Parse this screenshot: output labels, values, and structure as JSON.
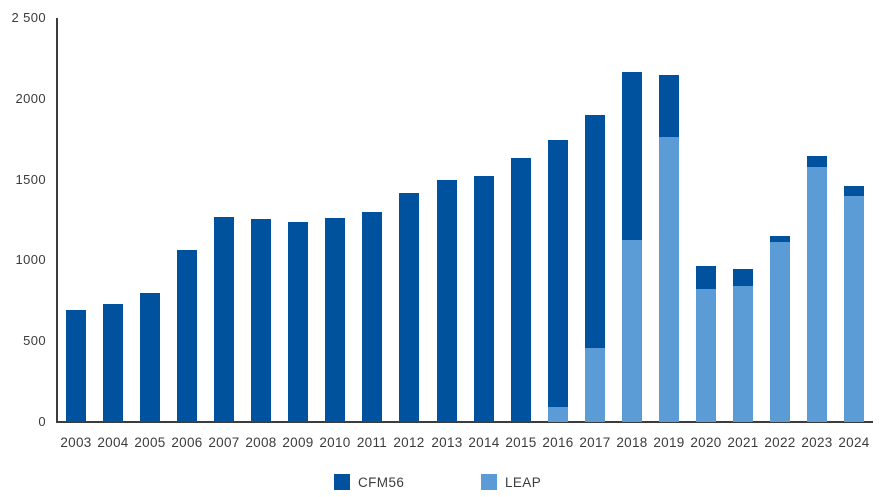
{
  "page": {
    "background": "#FFFFFF"
  },
  "chart_data": {
    "type": "bar",
    "stacked": true,
    "title": "",
    "xlabel": "",
    "ylabel": "",
    "categories": [
      "2003",
      "2004",
      "2005",
      "2006",
      "2007",
      "2008",
      "2009",
      "2010",
      "2011",
      "2012",
      "2013",
      "2014",
      "2015",
      "2016",
      "2017",
      "2018",
      "2019",
      "2020",
      "2021",
      "2022",
      "2023",
      "2024"
    ],
    "series": [
      {
        "name": "CFM56",
        "color": "#00519E",
        "stack_position": "top",
        "values": [
          690,
          730,
          800,
          1065,
          1270,
          1255,
          1240,
          1265,
          1300,
          1415,
          1500,
          1520,
          1635,
          1655,
          1440,
          1040,
          385,
          140,
          105,
          40,
          65,
          60
        ]
      },
      {
        "name": "LEAP",
        "color": "#5B9BD6",
        "stack_position": "bottom",
        "values": [
          0,
          0,
          0,
          0,
          0,
          0,
          0,
          0,
          0,
          0,
          0,
          0,
          0,
          90,
          460,
          1125,
          1765,
          820,
          840,
          1115,
          1580,
          1400
        ]
      }
    ],
    "totals": [
      690,
      730,
      800,
      1065,
      1270,
      1255,
      1240,
      1265,
      1300,
      1415,
      1500,
      1520,
      1635,
      1745,
      1900,
      2165,
      2150,
      960,
      945,
      1155,
      1645,
      1460
    ],
    "ylim": [
      0,
      2500
    ],
    "yticks": [
      {
        "value": 0,
        "label": "0"
      },
      {
        "value": 500,
        "label": "500"
      },
      {
        "value": 1000,
        "label": "1000"
      },
      {
        "value": 1500,
        "label": "1500"
      },
      {
        "value": 2000,
        "label": "2000"
      },
      {
        "value": 2500,
        "label": "2 500"
      }
    ],
    "grid": false,
    "legend_position": "bottom-center",
    "legend": [
      "CFM56",
      "LEAP"
    ],
    "axis_color": "#3C3C3B",
    "text_color": "#3C3C3B"
  }
}
